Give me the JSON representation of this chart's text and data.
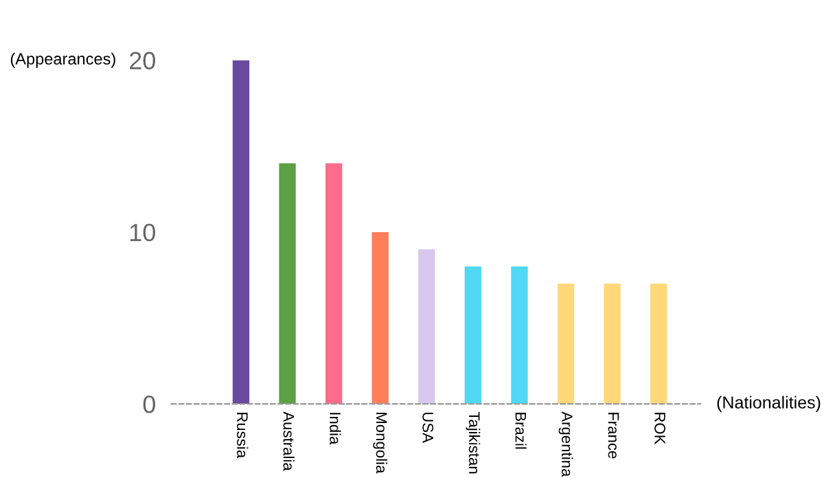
{
  "chart_data": {
    "type": "bar",
    "xlabel": "(Nationalities)",
    "ylabel": "(Appearances)",
    "categories": [
      "Russia",
      "Australia",
      "India",
      "Mongolia",
      "USA",
      "Tajikistan",
      "Brazil",
      "Argentina",
      "France",
      "ROK"
    ],
    "values": [
      20,
      14,
      14,
      10,
      9,
      8,
      8,
      7,
      7,
      7
    ],
    "colors": [
      "#6a4aa0",
      "#5da046",
      "#ff6b8a",
      "#ff7f5a",
      "#d8c8f0",
      "#50d8f5",
      "#50d8f5",
      "#ffd87a",
      "#ffd87a",
      "#ffd87a"
    ],
    "ylim": [
      0,
      20
    ],
    "yticks": [
      0,
      10,
      20
    ],
    "grid": false,
    "legend": false
  }
}
